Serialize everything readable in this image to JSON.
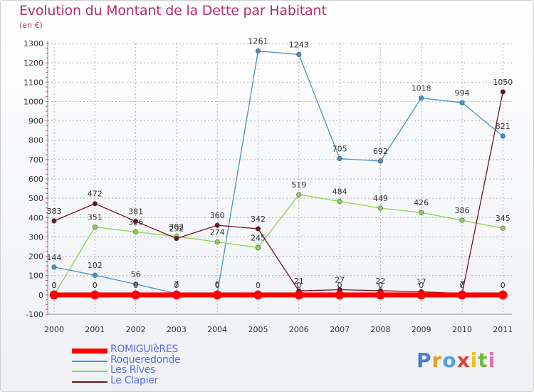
{
  "title": "Evolution du Montant de la Dette par Habitant",
  "subtitle": "(en €)",
  "logo_text": "Proxiti",
  "colors": {
    "title": "#b03068",
    "grid": "#b0b0b0",
    "axis_text": "#333333"
  },
  "chart_data": {
    "type": "line",
    "title": "Evolution du Montant de la Dette par Habitant",
    "ylabel": "(en €)",
    "xlabel": "",
    "x": [
      "2000",
      "2001",
      "2002",
      "2003",
      "2004",
      "2005",
      "2006",
      "2007",
      "2008",
      "2009",
      "2010",
      "2011"
    ],
    "ylim": [
      -100,
      1300
    ],
    "yticks": [
      -100,
      0,
      100,
      200,
      300,
      400,
      500,
      600,
      700,
      800,
      900,
      1000,
      1100,
      1200,
      1300
    ],
    "grid": true,
    "legend_position": "bottom-left",
    "series": [
      {
        "name": "ROMIGUIèRES",
        "color": "#ff0000",
        "values": [
          0,
          0,
          0,
          0,
          0,
          0,
          0,
          0,
          0,
          0,
          0,
          0
        ]
      },
      {
        "name": "Roqueredonde",
        "color": "#4a90c8",
        "values": [
          144,
          102,
          56,
          7,
          6,
          1261,
          1243,
          705,
          692,
          1018,
          994,
          821
        ]
      },
      {
        "name": "Les Rives",
        "color": "#90d050",
        "values": [
          0,
          351,
          326,
          302,
          274,
          245,
          519,
          484,
          449,
          426,
          386,
          345
        ]
      },
      {
        "name": "Le Clapier",
        "color": "#6b1520",
        "values": [
          383,
          472,
          381,
          292,
          360,
          342,
          21,
          27,
          22,
          17,
          7,
          1050
        ]
      }
    ]
  }
}
